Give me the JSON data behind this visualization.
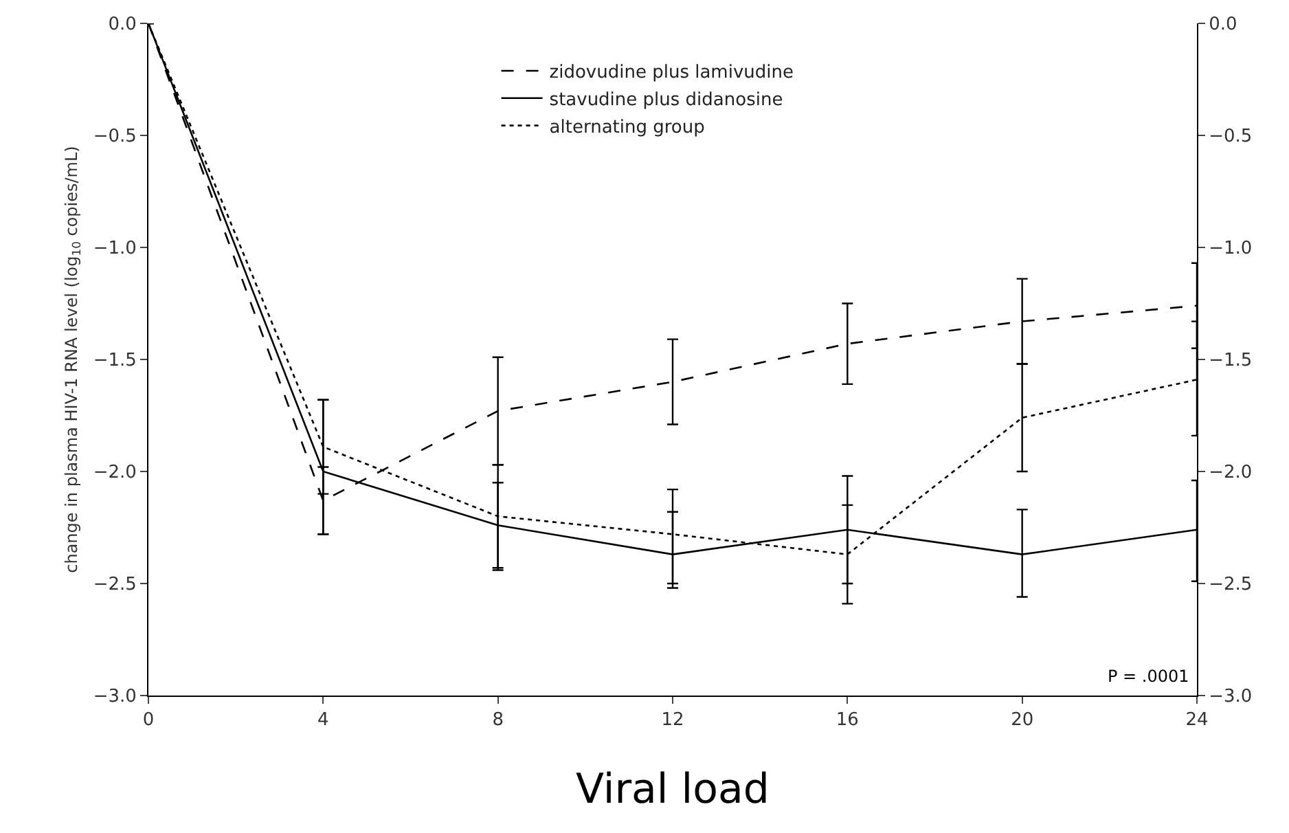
{
  "chart_data": {
    "type": "line",
    "title": "Viral load",
    "ylabel": "change in plasma HIV-1 RNA level (log$_{10}$ copies/mL)",
    "x": [
      0,
      4,
      8,
      12,
      16,
      20,
      24
    ],
    "series": [
      {
        "name": "zidovudine plus lamivudine",
        "color": "#000000",
        "line_style": "dashed",
        "values": [
          0,
          -2.13,
          -1.73,
          -1.6,
          -1.43,
          -1.33,
          -1.26
        ],
        "errors": [
          null,
          [
            -2.28,
            -1.98
          ],
          [
            -1.97,
            -1.49
          ],
          [
            -1.79,
            -1.41
          ],
          [
            -1.61,
            -1.25
          ],
          [
            -1.52,
            -1.14
          ],
          [
            -1.45,
            -1.07
          ]
        ]
      },
      {
        "name": "stavudine plus didanosine",
        "color": "#000000",
        "line_style": "solid",
        "values": [
          0,
          -2.0,
          -2.24,
          -2.37,
          -2.26,
          -2.37,
          -2.26
        ],
        "errors": [
          null,
          [
            -2.28,
            -1.68
          ],
          [
            -2.44,
            -2.05
          ],
          [
            -2.52,
            -2.08
          ],
          [
            -2.59,
            -2.02
          ],
          [
            -2.56,
            -2.17
          ],
          [
            -2.49,
            -2.04
          ]
        ]
      },
      {
        "name": "alternating group",
        "color": "#000000",
        "line_style": "dotted",
        "values": [
          0,
          -1.89,
          -2.2,
          -2.28,
          -2.37,
          -1.76,
          -1.59
        ],
        "errors": [
          null,
          [
            -2.1,
            -1.68
          ],
          [
            -2.43,
            -1.97
          ],
          [
            -2.5,
            -2.18
          ],
          [
            -2.5,
            -2.15
          ],
          [
            -2.0,
            -1.52
          ],
          [
            -1.84,
            -1.33
          ]
        ]
      }
    ],
    "xlim": [
      0,
      24
    ],
    "xticks": [
      0,
      4,
      8,
      12,
      16,
      20,
      24
    ],
    "ylim": [
      -3,
      0
    ],
    "yticks": [
      {
        "value": 0,
        "label": "0.0"
      },
      {
        "value": -0.5,
        "label": "−0.5"
      },
      {
        "value": -1,
        "label": "−1.0"
      },
      {
        "value": -1.5,
        "label": "−1.5"
      },
      {
        "value": -2,
        "label": "−2.0"
      },
      {
        "value": -2.5,
        "label": "−2.5"
      },
      {
        "value": -3,
        "label": "−3.0"
      }
    ],
    "y2lim": [
      -3,
      0
    ],
    "y2ticks": [
      {
        "value": 0,
        "label": "0.0"
      },
      {
        "value": -0.5,
        "label": "−0.5"
      },
      {
        "value": -1,
        "label": "−1.0"
      },
      {
        "value": -1.5,
        "label": "−1.5"
      },
      {
        "value": -2,
        "label": "−2.0"
      },
      {
        "value": -2.5,
        "label": "−2.5"
      },
      {
        "value": -3,
        "label": "−3.0"
      }
    ],
    "annotations": [
      "P = .0001"
    ],
    "grid": false,
    "legend": "top"
  }
}
